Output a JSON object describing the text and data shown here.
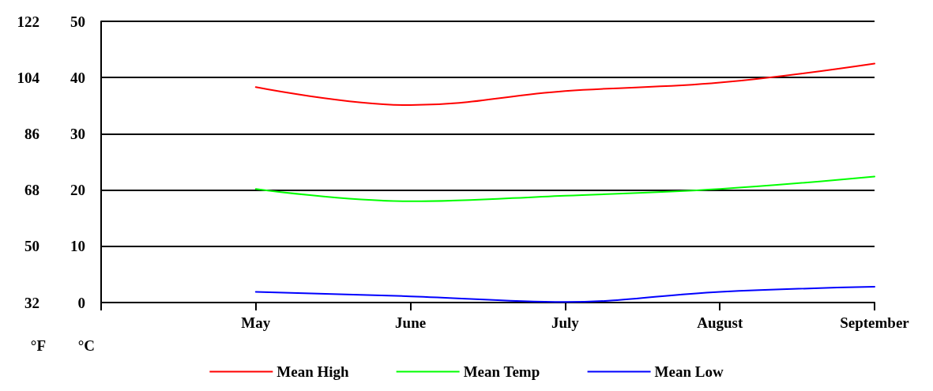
{
  "chart_data": {
    "type": "line",
    "categories": [
      null,
      "May",
      "June",
      "July",
      "August",
      "September"
    ],
    "series": [
      {
        "name": "Mean High",
        "color": "#ff0000",
        "values": [
          null,
          38.3,
          35.1,
          37.6,
          39.1,
          42.5
        ]
      },
      {
        "name": "Mean Temp",
        "color": "#00ff00",
        "values": [
          null,
          20.2,
          18.0,
          19.0,
          20.2,
          22.4
        ]
      },
      {
        "name": "Mean Low",
        "color": "#0000ff",
        "values": [
          null,
          1.9,
          1.1,
          0.1,
          1.9,
          2.8
        ]
      }
    ],
    "ylabel": "°C",
    "ylim": [
      0,
      50
    ],
    "yticks": [
      0,
      10,
      20,
      30,
      40,
      50
    ],
    "y2label": "°F",
    "y2lim": [
      32,
      122
    ],
    "y2ticks": [
      32,
      50,
      68,
      86,
      104,
      122
    ],
    "grid": "y",
    "legend": "bottom",
    "marker": "none",
    "line_style": "solid"
  }
}
